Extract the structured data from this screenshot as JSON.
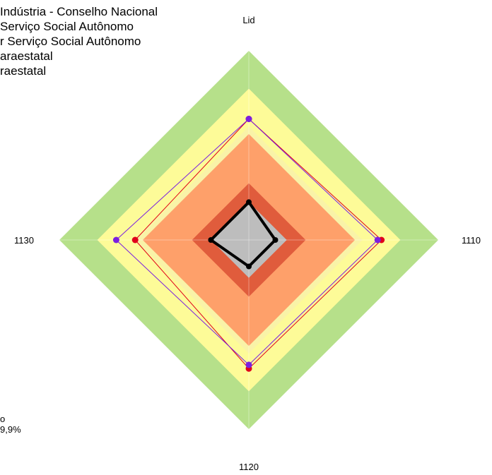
{
  "chart_data": {
    "type": "radar",
    "axes": [
      "Lid",
      "1110",
      "1120",
      "1130"
    ],
    "bands": [
      {
        "max": 5,
        "color": "#b6e08a"
      },
      {
        "max": 4,
        "color": "#fdfb98"
      },
      {
        "max": 3,
        "color": "#f9f3a8"
      },
      {
        "max": 2.8,
        "color": "#fea06a"
      },
      {
        "max": 1.5,
        "color": "#e05c3c"
      },
      {
        "max": 1.0,
        "color": "#bdbdbd"
      }
    ],
    "rmax": 5,
    "series": [
      {
        "values": [
          1.0,
          0.7,
          0.7,
          1.0
        ],
        "color": "#000000",
        "lineWidth": 4,
        "markerRadius": 4
      },
      {
        "values": [
          3.2,
          3.5,
          3.4,
          3.0
        ],
        "color": "#e0001b",
        "lineWidth": 1,
        "markerRadius": 4.5
      },
      {
        "values": [
          3.2,
          3.4,
          3.3,
          3.5
        ],
        "color": "#7b1fe0",
        "lineWidth": 1,
        "markerRadius": 4.5
      }
    ]
  },
  "legend": [
    "Indústria - Conselho Nacional",
    "Serviço Social Autônomo",
    "r Serviço Social Autônomo",
    "araestatal",
    "raestatal"
  ],
  "note": [
    "o",
    "9,9%"
  ],
  "colors": {
    "inner_grey": "#bdbdbd"
  }
}
